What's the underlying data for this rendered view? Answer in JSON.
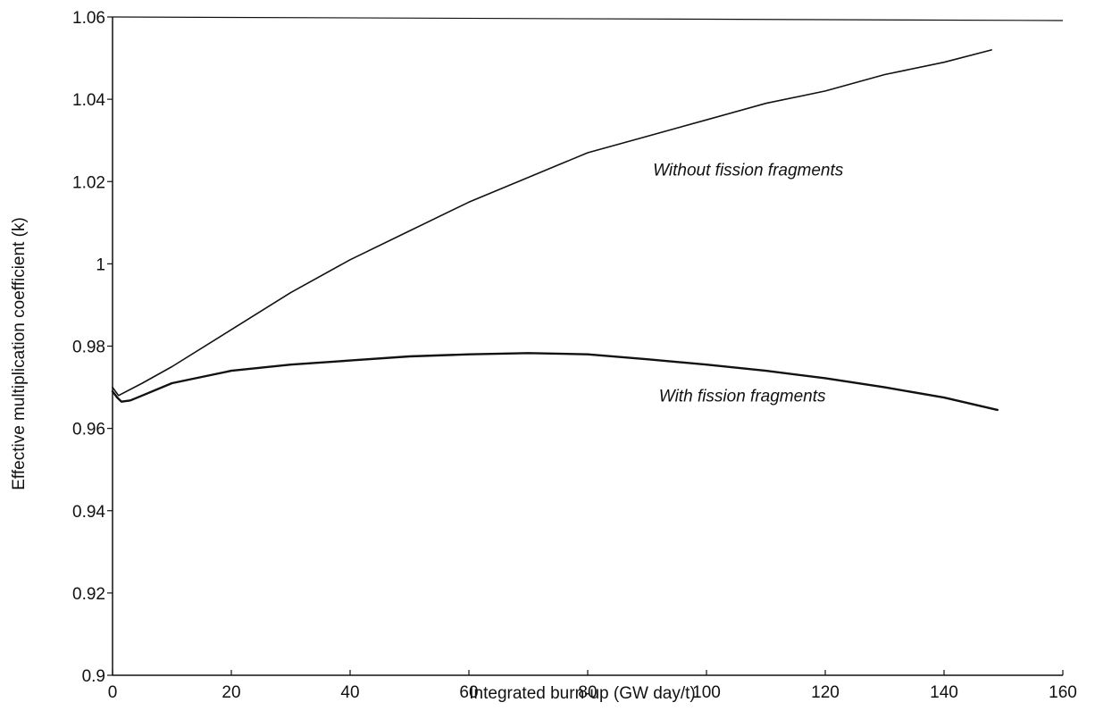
{
  "chart_data": {
    "type": "line",
    "xlabel": "Integrated burn-up (GW day/t)",
    "ylabel": "Effective multiplication coefficient (k)",
    "xlim": [
      0,
      160
    ],
    "ylim": [
      0.9,
      1.06
    ],
    "x_ticks": [
      0,
      20,
      40,
      60,
      80,
      100,
      120,
      140,
      160
    ],
    "x_tick_labels": [
      "0",
      "20",
      "40",
      "60",
      "80",
      "100",
      "120",
      "140",
      "160"
    ],
    "y_ticks": [
      0.9,
      0.92,
      0.94,
      0.96,
      0.98,
      1.0,
      1.02,
      1.04,
      1.06
    ],
    "y_tick_labels": [
      "0.9",
      "0.92",
      "0.94",
      "0.96",
      "0.98",
      "1",
      "1.02",
      "1.04",
      "1.06"
    ],
    "grid": false,
    "legend": "none",
    "series": [
      {
        "name": "Without fission fragments",
        "color": "#111111",
        "x": [
          0,
          1,
          5,
          10,
          20,
          30,
          40,
          50,
          60,
          70,
          75,
          80,
          90,
          100,
          110,
          120,
          130,
          140,
          148
        ],
        "y": [
          0.97,
          0.968,
          0.971,
          0.975,
          0.984,
          0.993,
          1.001,
          1.008,
          1.015,
          1.021,
          1.024,
          1.027,
          1.031,
          1.035,
          1.039,
          1.042,
          1.046,
          1.049,
          1.052
        ]
      },
      {
        "name": "With fission fragments",
        "color": "#111111",
        "x": [
          0,
          0.8,
          1.5,
          3,
          5,
          10,
          20,
          30,
          40,
          50,
          60,
          70,
          80,
          90,
          100,
          110,
          120,
          130,
          140,
          149
        ],
        "y": [
          0.969,
          0.9675,
          0.9665,
          0.9668,
          0.968,
          0.971,
          0.974,
          0.9755,
          0.9765,
          0.9775,
          0.978,
          0.9783,
          0.978,
          0.9768,
          0.9755,
          0.974,
          0.9722,
          0.97,
          0.9675,
          0.9645
        ]
      }
    ],
    "annotations": [
      {
        "text": "Without fission fragments",
        "x": 91,
        "y": 1.0215
      },
      {
        "text": "With fission fragments",
        "x": 92,
        "y": 0.9665
      }
    ]
  }
}
